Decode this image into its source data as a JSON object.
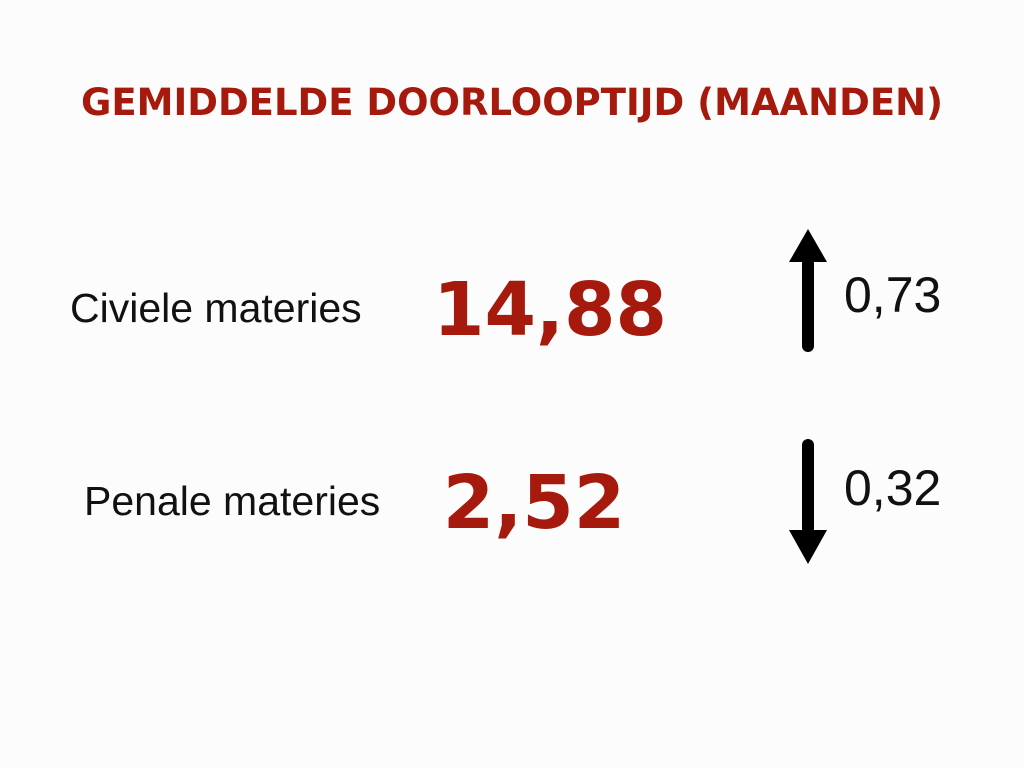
{
  "title": "GEMIDDELDE DOORLOOPTIJD (MAANDEN)",
  "rows": [
    {
      "label": "Civiele materies",
      "value": "14,88",
      "change": "0,73"
    },
    {
      "label": "Penale materies",
      "value": "2,52",
      "change": "0,32"
    }
  ]
}
